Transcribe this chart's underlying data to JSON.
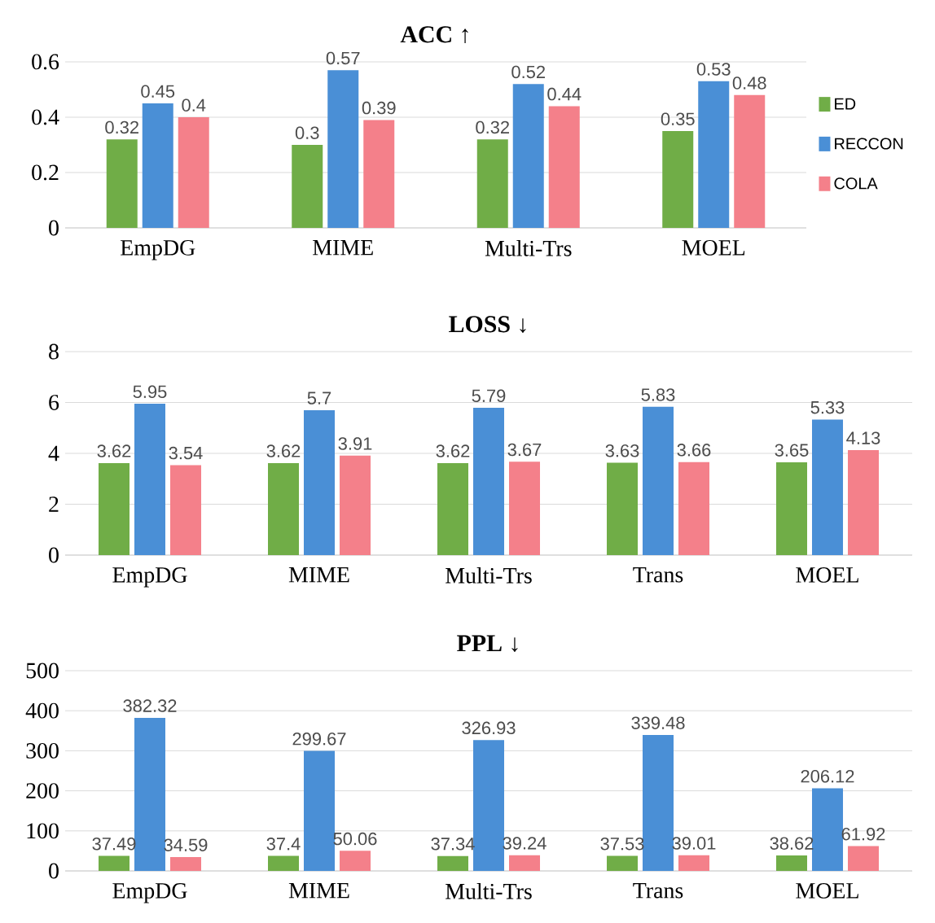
{
  "chart_data": [
    {
      "type": "bar",
      "title": "ACC ↑",
      "categories": [
        "EmpDG",
        "MIME",
        "Multi-Trs",
        "MOEL"
      ],
      "series": [
        {
          "name": "ED",
          "color": "#70ad47",
          "values": [
            0.32,
            0.3,
            0.32,
            0.35
          ]
        },
        {
          "name": "RECCON",
          "color": "#4a8fd6",
          "values": [
            0.45,
            0.57,
            0.52,
            0.53
          ]
        },
        {
          "name": "COLA",
          "color": "#f4808a",
          "values": [
            0.4,
            0.39,
            0.44,
            0.48
          ]
        }
      ],
      "ylim": [
        0,
        0.6
      ],
      "yticks": [
        0,
        0.2,
        0.4,
        0.6
      ],
      "grid": "y",
      "data_labels": true,
      "legend": "right"
    },
    {
      "type": "bar",
      "title": "LOSS ↓",
      "categories": [
        "EmpDG",
        "MIME",
        "Multi-Trs",
        "Trans",
        "MOEL"
      ],
      "series": [
        {
          "color": "#70ad47",
          "values": [
            3.62,
            3.62,
            3.62,
            3.63,
            3.65
          ]
        },
        {
          "color": "#4a8fd6",
          "values": [
            5.95,
            5.7,
            5.79,
            5.83,
            5.33
          ]
        },
        {
          "color": "#f4808a",
          "values": [
            3.54,
            3.91,
            3.67,
            3.66,
            4.13
          ]
        }
      ],
      "ylim": [
        0,
        8
      ],
      "yticks": [
        0,
        2,
        4,
        6,
        8
      ],
      "grid": "y",
      "data_labels": true
    },
    {
      "type": "bar",
      "title": "PPL ↓",
      "categories": [
        "EmpDG",
        "MIME",
        "Multi-Trs",
        "Trans",
        "MOEL"
      ],
      "series": [
        {
          "color": "#70ad47",
          "values": [
            37.49,
            37.4,
            37.34,
            37.53,
            38.62
          ]
        },
        {
          "color": "#4a8fd6",
          "values": [
            382.32,
            299.67,
            326.93,
            339.48,
            206.12
          ]
        },
        {
          "color": "#f4808a",
          "values": [
            34.59,
            50.06,
            39.24,
            39.01,
            61.92
          ]
        }
      ],
      "ylim": [
        0,
        500
      ],
      "yticks": [
        0,
        100,
        200,
        300,
        400,
        500
      ],
      "grid": "y",
      "data_labels": true
    }
  ]
}
